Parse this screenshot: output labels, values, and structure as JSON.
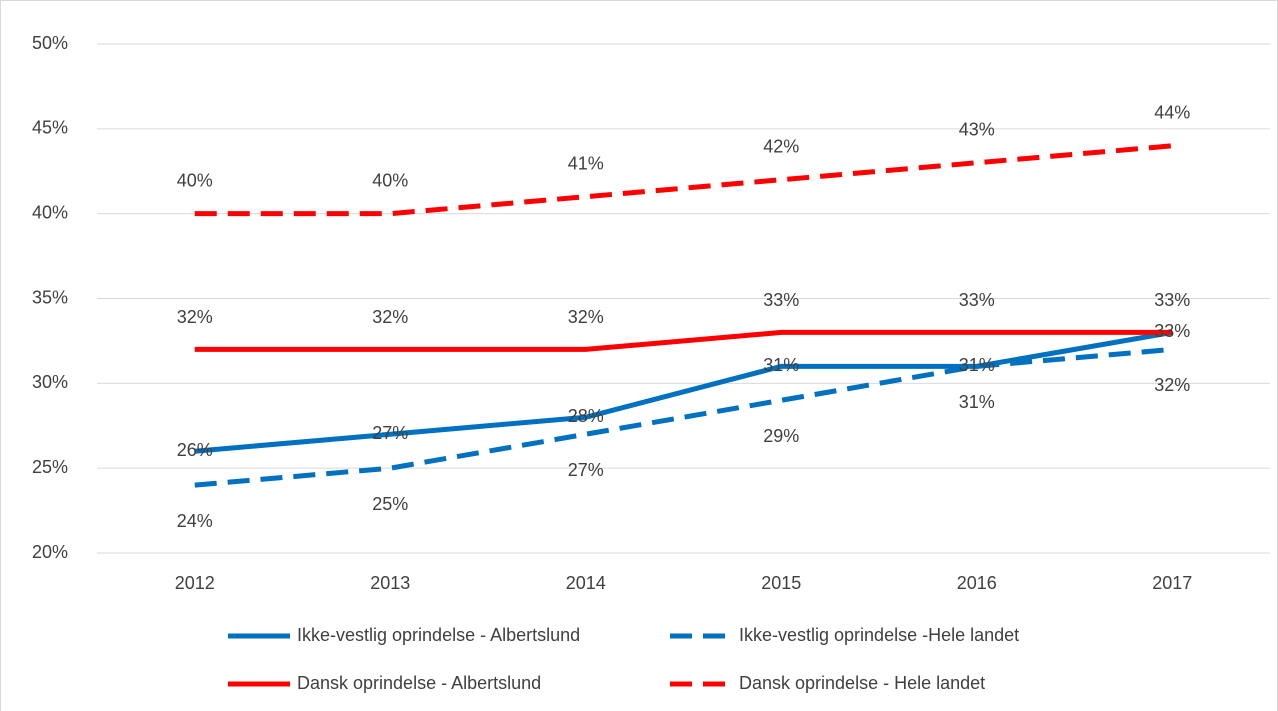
{
  "chart_data": {
    "type": "line",
    "categories": [
      "2012",
      "2013",
      "2014",
      "2015",
      "2016",
      "2017"
    ],
    "ylim": [
      20,
      50
    ],
    "yticks": [
      {
        "value": 20,
        "label": "20%"
      },
      {
        "value": 25,
        "label": "25%"
      },
      {
        "value": 30,
        "label": "30%"
      },
      {
        "value": 35,
        "label": "35%"
      },
      {
        "value": 40,
        "label": "40%"
      },
      {
        "value": 45,
        "label": "45%"
      },
      {
        "value": 50,
        "label": "50%"
      }
    ],
    "grid": true,
    "legend": "bottom",
    "series": [
      {
        "name": "Ikke-vestlig oprindelse - Albertslund",
        "color": "#0070c0",
        "line_style": "solid",
        "values": [
          26,
          27,
          28,
          31,
          31,
          33
        ],
        "value_labels": [
          "26%",
          "27%",
          "28%",
          "31%",
          "31%",
          "33%"
        ]
      },
      {
        "name": "Ikke-vestlig oprindelse -Hele landet",
        "color": "#0070c0",
        "line_style": "dashed",
        "values": [
          24,
          25,
          27,
          29,
          31,
          32
        ],
        "value_labels": [
          "24%",
          "25%",
          "27%",
          "29%",
          "31%",
          "32%"
        ]
      },
      {
        "name": "Dansk oprindelse - Albertslund",
        "color": "#ff0000",
        "line_style": "solid",
        "values": [
          32,
          32,
          32,
          33,
          33,
          33
        ],
        "value_labels": [
          "32%",
          "32%",
          "32%",
          "33%",
          "33%",
          "33%"
        ]
      },
      {
        "name": "Dansk oprindelse - Hele landet",
        "color": "#ff0000",
        "line_style": "dashed",
        "values": [
          40,
          40,
          41,
          42,
          43,
          44
        ],
        "value_labels": [
          "40%",
          "40%",
          "41%",
          "42%",
          "43%",
          "44%"
        ]
      }
    ]
  }
}
